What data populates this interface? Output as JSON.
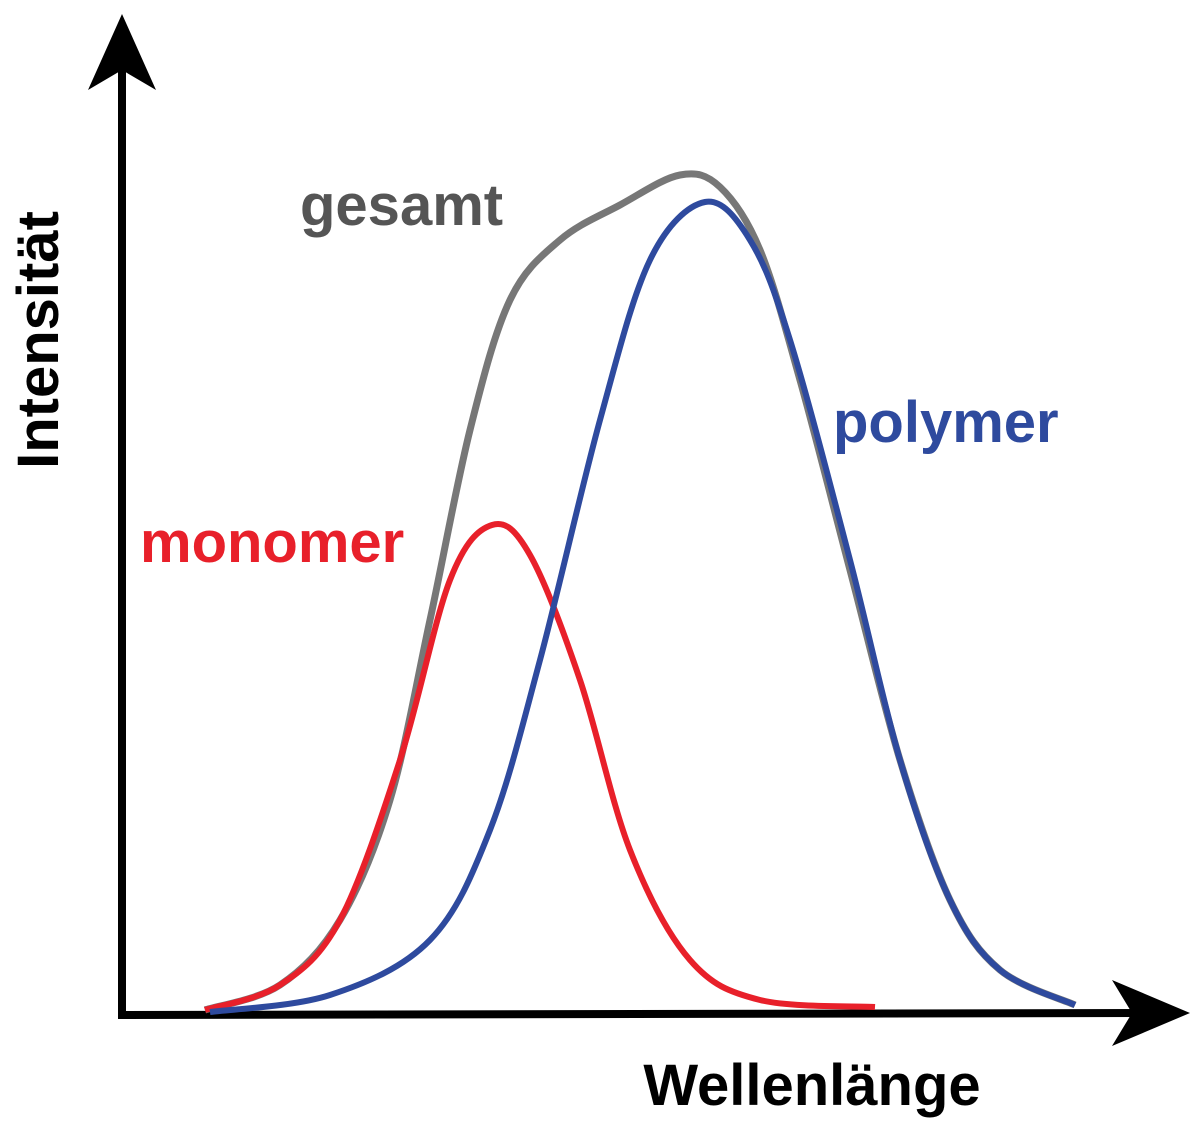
{
  "axes": {
    "x_label": "Wellenlänge",
    "y_label": "Intensität"
  },
  "curves": [
    {
      "label": "gesamt"
    },
    {
      "label": "monomer"
    },
    {
      "label": "polymer"
    }
  ]
}
